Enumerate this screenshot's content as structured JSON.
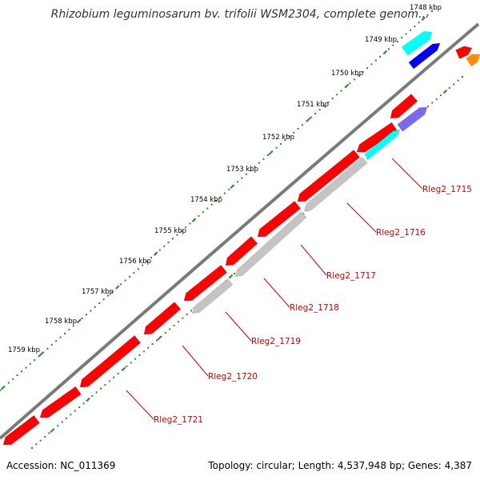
{
  "title": "Rhizobium leguminosarum bv. trifolii WSM2304, complete genom...",
  "accession": "Accession: NC_011369",
  "summary": "Topology: circular; Length: 4,537,948 bp; Genes: 4,387",
  "colors": {
    "backbone": "#7a7a7a",
    "cds_red": "#ff0000",
    "gene_grey": "#c4c4c4",
    "cyan": "#00ffff",
    "blue": "#0000ee",
    "purple": "#7b68ee",
    "orange": "#ff8c00",
    "tick_green": "#228b22",
    "label_red": "#cc0000"
  },
  "tick_labels": [
    "1748 kbp",
    "1749 kbp",
    "1750 kbp",
    "1751 kbp",
    "1752 kbp",
    "1753 kbp",
    "1754 kbp",
    "1755 kbp",
    "1756 kbp",
    "1757 kbp",
    "1758 kbp",
    "1759 kbp"
  ],
  "gene_labels": [
    "Rleg2_1715",
    "Rleg2_1716",
    "Rleg2_1717",
    "Rleg2_1718",
    "Rleg2_1719",
    "Rleg2_1720",
    "Rleg2_1721"
  ]
}
